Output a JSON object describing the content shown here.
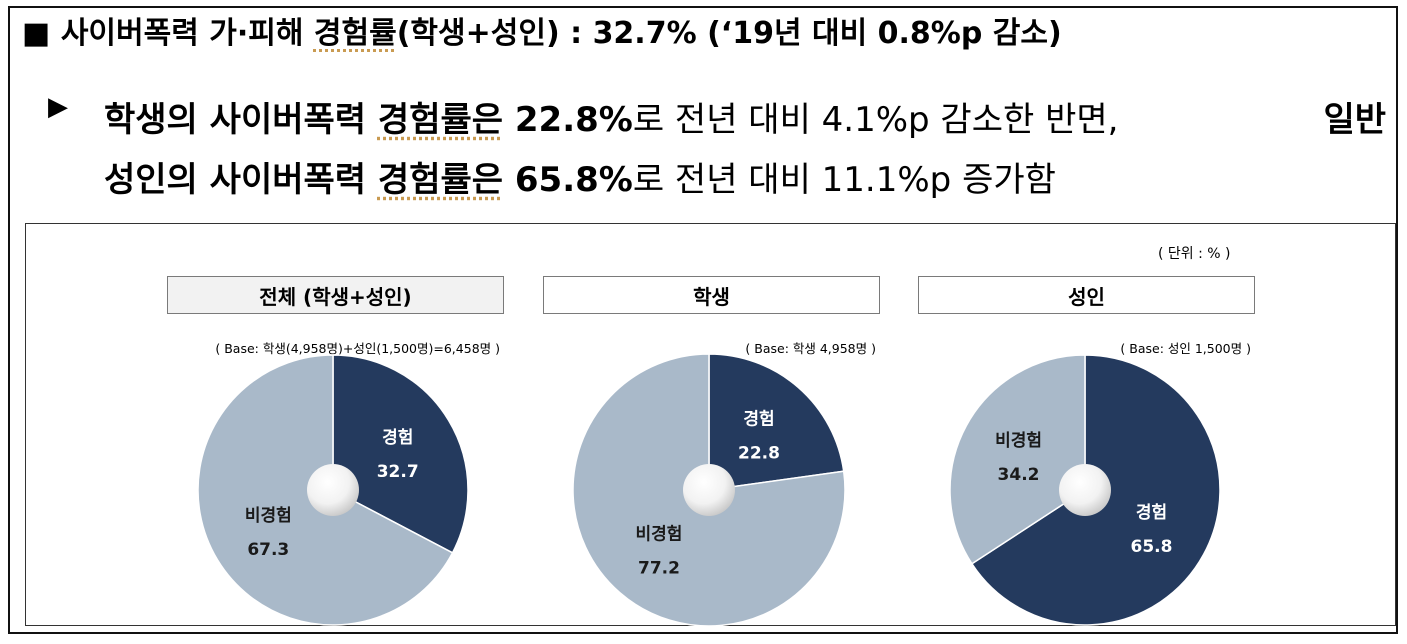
{
  "headline": {
    "marker": "■",
    "pre": "사이버폭력 가·피해 ",
    "underlined": "경험률",
    "post": "(학생+성인) : 32.7% (‘19년 대비 0.8%p 감소)"
  },
  "summary": {
    "bullet": "▶",
    "seg1_bold": "학생의 사이버폭력 ",
    "seg1_ul": "경험률은",
    "seg1_num": " 22.8%",
    "seg1_rest": "로 전년 대비 4.1%p 감소한 반면,",
    "seg2_bold_a": "일반",
    "seg2_bold_b": "성인의 사이버폭력 ",
    "seg2_ul": "경험률은",
    "seg2_num": " 65.8%",
    "seg2_rest": "로 전년 대비 11.1%p 증가함"
  },
  "unit_label": "( 단위 : % )",
  "colors": {
    "experienced": "#243a5e",
    "not_experienced": "#a9b9c9",
    "tab_active_bg": "#f2f2f2"
  },
  "chart_data": [
    {
      "type": "pie",
      "title": "전체 (학생+성인)",
      "base_note": "( Base: 학생(4,958명)+성인(1,500명)=6,458명 )",
      "slices": [
        {
          "label": "경험",
          "value": 32.7
        },
        {
          "label": "비경험",
          "value": 67.3
        }
      ]
    },
    {
      "type": "pie",
      "title": "학생",
      "base_note": "( Base: 학생 4,958명 )",
      "slices": [
        {
          "label": "경험",
          "value": 22.8
        },
        {
          "label": "비경험",
          "value": 77.2
        }
      ]
    },
    {
      "type": "pie",
      "title": "성인",
      "base_note": "( Base: 성인 1,500명 )",
      "slices": [
        {
          "label": "경험",
          "value": 65.8
        },
        {
          "label": "비경험",
          "value": 34.2
        }
      ]
    }
  ]
}
